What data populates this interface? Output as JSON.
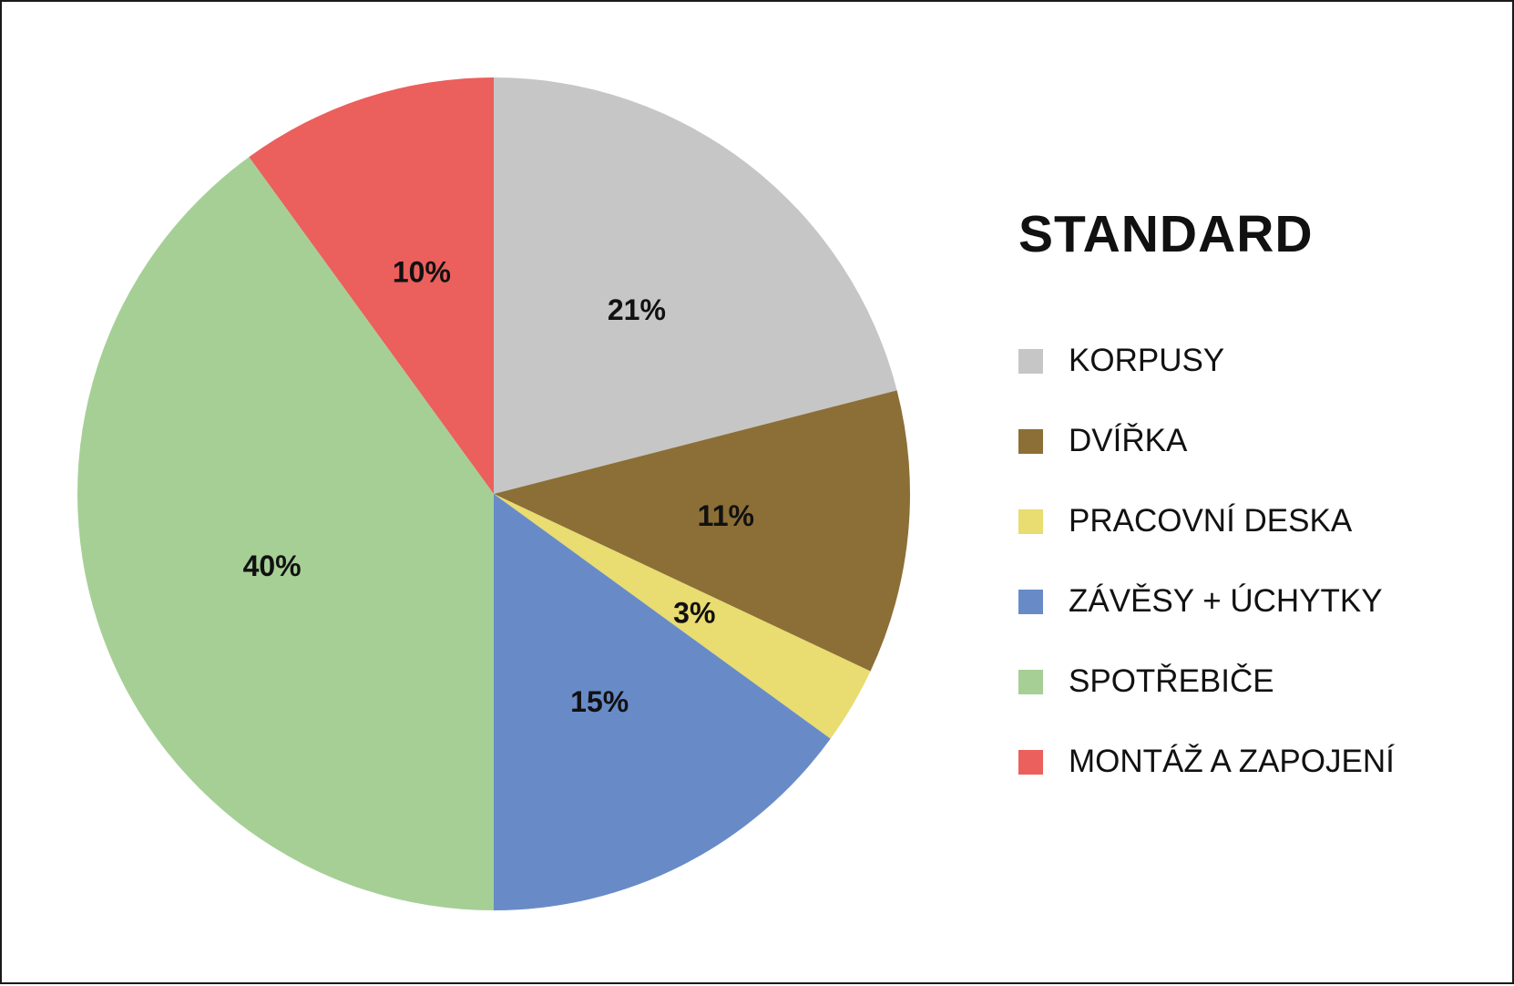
{
  "chart_data": {
    "type": "pie",
    "title": "STANDARD",
    "categories": [
      "KORPUSY",
      "DVÍŘKA",
      "PRACOVNÍ DESKA",
      "ZÁVĚSY + ÚCHYTKY",
      "SPOTŘEBIČE",
      "MONTÁŽ A ZAPOJENÍ"
    ],
    "values": [
      21,
      11,
      3,
      15,
      40,
      10
    ],
    "value_labels": [
      "21%",
      "11%",
      "3%",
      "15%",
      "40%",
      "10%"
    ],
    "colors": [
      "#C6C6C6",
      "#8C6F36",
      "#E9DC70",
      "#688BC8",
      "#A6CF96",
      "#EB5F5C"
    ],
    "start_angle_deg": 0,
    "direction": "clockwise",
    "legend_position": "right"
  }
}
